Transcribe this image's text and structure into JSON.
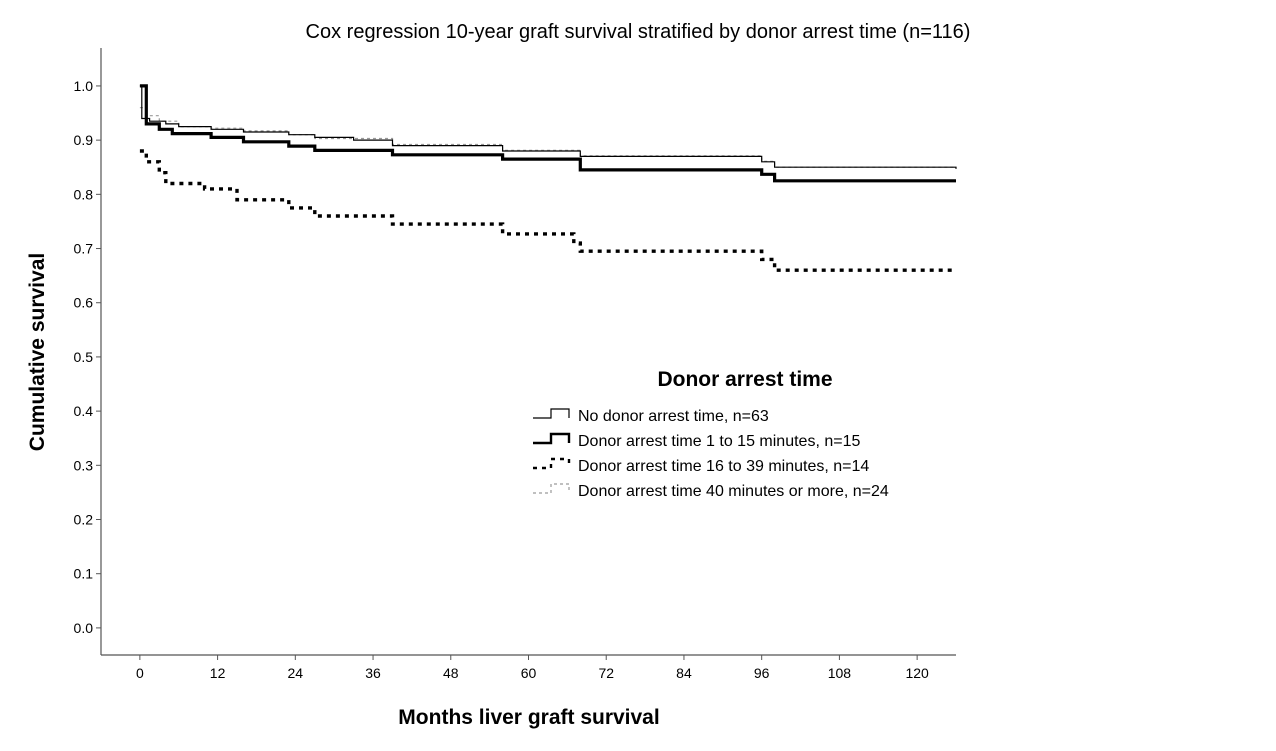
{
  "chart_data": {
    "type": "line",
    "title": "Cox regression 10-year graft survival stratified by donor arrest time (n=116)",
    "xlabel": "Months liver graft survival",
    "ylabel": "Cumulative survival",
    "xlim": [
      -6,
      126
    ],
    "ylim": [
      -0.05,
      1.07
    ],
    "x_ticks": [
      "0",
      "12",
      "24",
      "36",
      "48",
      "60",
      "72",
      "84",
      "96",
      "108",
      "120"
    ],
    "y_ticks": [
      "0.0",
      "0.1",
      "0.2",
      "0.3",
      "0.4",
      "0.5",
      "0.6",
      "0.7",
      "0.8",
      "0.9",
      "1.0"
    ],
    "legend": {
      "title": "Donor arrest time",
      "placement": "center-right"
    },
    "series": [
      {
        "name": "No donor arrest time, n=63",
        "style": "thin-solid",
        "color": "#000000",
        "points": [
          [
            0,
            1.0
          ],
          [
            0.3,
            0.94
          ],
          [
            1.5,
            0.935
          ],
          [
            4,
            0.93
          ],
          [
            6,
            0.925
          ],
          [
            11,
            0.92
          ],
          [
            16,
            0.915
          ],
          [
            23,
            0.91
          ],
          [
            27,
            0.905
          ],
          [
            33,
            0.9
          ],
          [
            39,
            0.89
          ],
          [
            56,
            0.88
          ],
          [
            68,
            0.87
          ],
          [
            96,
            0.86
          ],
          [
            98,
            0.85
          ],
          [
            126,
            0.847
          ]
        ]
      },
      {
        "name": "Donor arrest time 1 to 15 minutes, n=15",
        "style": "thick-solid",
        "color": "#000000",
        "points": [
          [
            0,
            1.0
          ],
          [
            1,
            0.93
          ],
          [
            3,
            0.92
          ],
          [
            5,
            0.912
          ],
          [
            11,
            0.905
          ],
          [
            16,
            0.897
          ],
          [
            23,
            0.889
          ],
          [
            27,
            0.881
          ],
          [
            39,
            0.873
          ],
          [
            56,
            0.865
          ],
          [
            68,
            0.845
          ],
          [
            96,
            0.837
          ],
          [
            98,
            0.825
          ],
          [
            126,
            0.825
          ]
        ]
      },
      {
        "name": "Donor arrest time 16 to 39 minutes, n=14",
        "style": "thick-dotted",
        "color": "#000000",
        "points": [
          [
            0,
            0.88
          ],
          [
            1,
            0.86
          ],
          [
            3,
            0.84
          ],
          [
            4,
            0.82
          ],
          [
            10,
            0.81
          ],
          [
            15,
            0.79
          ],
          [
            23,
            0.775
          ],
          [
            27,
            0.76
          ],
          [
            39,
            0.745
          ],
          [
            56,
            0.727
          ],
          [
            67,
            0.71
          ],
          [
            68,
            0.695
          ],
          [
            96,
            0.68
          ],
          [
            98,
            0.66
          ],
          [
            126,
            0.66
          ]
        ]
      },
      {
        "name": "Donor arrest time 40 minutes or more, n=24",
        "style": "thin-dashed",
        "color": "#9a9a9a",
        "points": [
          [
            0,
            0.96
          ],
          [
            1,
            0.945
          ],
          [
            3,
            0.935
          ],
          [
            6,
            0.925
          ],
          [
            11,
            0.922
          ],
          [
            16,
            0.917
          ],
          [
            23,
            0.91
          ],
          [
            27,
            0.903
          ],
          [
            39,
            0.892
          ],
          [
            56,
            0.881
          ],
          [
            68,
            0.871
          ],
          [
            96,
            0.861
          ],
          [
            98,
            0.85
          ],
          [
            126,
            0.85
          ]
        ]
      }
    ]
  }
}
